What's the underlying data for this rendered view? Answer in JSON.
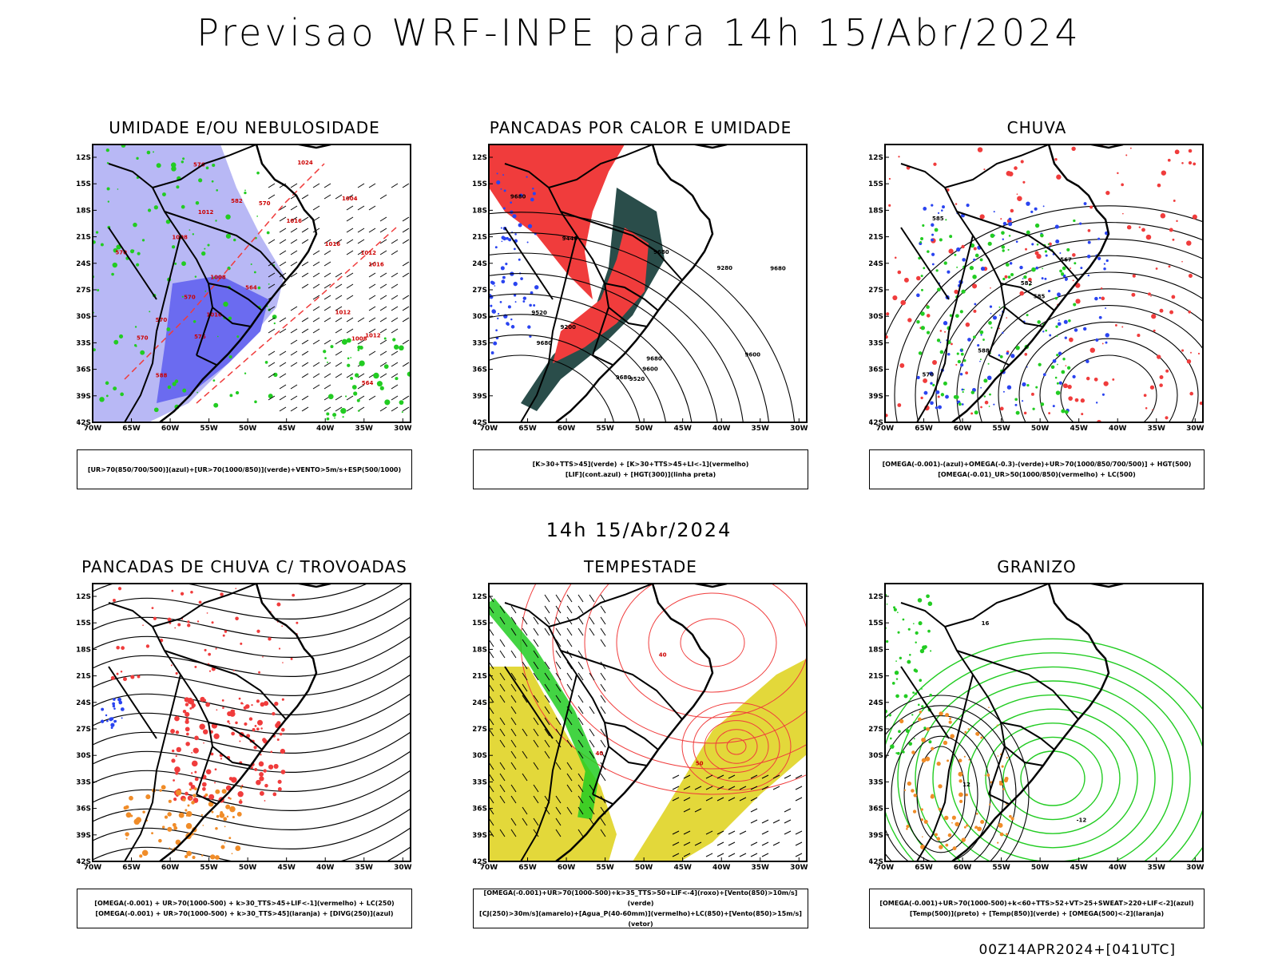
{
  "header": {
    "title": "Previsao WRF-INPE  para 14h 15/Abr/2024"
  },
  "mid_label": "14h 15/Abr/2024",
  "footer": "00Z14APR2024+[041UTC]",
  "axes": {
    "lat_labels": [
      "12S",
      "15S",
      "18S",
      "21S",
      "24S",
      "27S",
      "30S",
      "33S",
      "36S",
      "39S",
      "42S"
    ],
    "lon_labels": [
      "70W",
      "65W",
      "60W",
      "55W",
      "50W",
      "45W",
      "40W",
      "35W",
      "30W"
    ]
  },
  "panels": [
    {
      "title": "UMIDADE E/OU NEBULOSIDADE",
      "legend": [
        "[UR>70(850/700/500)](azul)+[UR>70(1000/850)](verde)+VENTO>5m/s+ESP(500/1000)"
      ],
      "contour_labels": [
        "1012",
        "1012",
        "1016",
        "1016",
        "1008",
        "1012",
        "1016",
        "1024",
        "1008",
        "1004",
        "1008",
        "1012",
        "1016",
        "576",
        "570",
        "564",
        "570",
        "570",
        "576",
        "582",
        "564",
        "570",
        "588",
        "570"
      ]
    },
    {
      "title": "PANCADAS POR CALOR E UMIDADE",
      "legend": [
        "[K>30+TTS>45](verde) + [K>30+TTS>45+LI<-1](vermelho)",
        "[LIF](cont.azul) + [HGT(300)](linha preta)"
      ],
      "contour_labels": [
        "9680",
        "9680",
        "9680",
        "9680",
        "9680",
        "9680",
        "9600",
        "9520",
        "9280",
        "9440",
        "9200",
        "9600",
        "9520"
      ]
    },
    {
      "title": "CHUVA",
      "legend": [
        "[OMEGA(-0.001)-(azul)+OMEGA(-0.3)-(verde)+UR>70(1000/850/700/500)] + HGT(500)",
        "[OMEGA(-0.01)_UR>50(1000/850)(vermelho) + LC(500)"
      ],
      "contour_labels": [
        "585",
        "585",
        "582",
        "570",
        "567",
        "588"
      ]
    },
    {
      "title": "PANCADAS DE CHUVA C/ TROVOADAS",
      "legend": [
        "[OMEGA(-0.001) + UR>70(1000-500) + k>30_TTS>45+LIF<-1](vermelho) + LC(250)",
        "[OMEGA(-0.001) + UR>70(1000-500) + k>30_TTS>45](laranja) + [DIVG(250)](azul)"
      ],
      "contour_labels": []
    },
    {
      "title": "TEMPESTADE",
      "legend": [
        "[OMEGA(-0.001)+UR>70(1000-500)+k>35_TTS>50+LIF<-4](roxo)+[Vento(850)>10m/s](verde)",
        "[CJ(250)>30m/s](amarelo)+[Agua_P(40-60mm)](vermelho)+LC(850)+[Vento(850)>15m/s](vetor)"
      ],
      "contour_labels": [
        "40",
        "50",
        "40"
      ]
    },
    {
      "title": "GRANIZO",
      "legend": [
        "[OMEGA(-0.001)+UR>70(1000-500)+k<60+TTS>52+VT>25+SWEAT>220+LIF<-2](azul)",
        "[Temp(500)](preto) + [Temp(850)](verde) + [OMEGA(500)<-2](laranja)"
      ],
      "contour_labels": [
        "-12",
        "16",
        "12"
      ]
    }
  ],
  "colors": {
    "blue_fill": "#6b6bf0",
    "light_blue": "#b8b8f5",
    "green": "#22cc22",
    "red": "#f03c3c",
    "dark_teal": "#2a4d4a",
    "orange": "#f08c28",
    "yellow": "#e3d83a",
    "blue_line": "#2a44f0"
  }
}
